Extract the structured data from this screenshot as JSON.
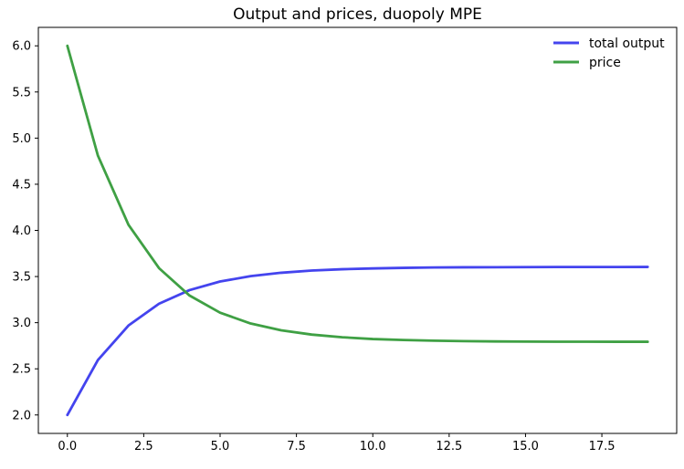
{
  "chart_data": {
    "type": "line",
    "title": "Output and prices, duopoly MPE",
    "xlabel": "",
    "ylabel": "",
    "xlim": [
      -0.95,
      19.95
    ],
    "ylim": [
      1.8,
      6.2
    ],
    "grid": false,
    "legend_position": "upper right",
    "legend_frame": false,
    "background": "#ffffff",
    "axis_color": "#000000",
    "text_color": "#000000",
    "x_ticks": [
      0,
      2.5,
      5,
      7.5,
      10,
      12.5,
      15,
      17.5
    ],
    "x_tick_labels": [
      "0.0",
      "2.5",
      "5.0",
      "7.5",
      "10.0",
      "12.5",
      "15.0",
      "17.5"
    ],
    "y_ticks": [
      2.0,
      2.5,
      3.0,
      3.5,
      4.0,
      4.5,
      5.0,
      5.5,
      6.0
    ],
    "y_tick_labels": [
      "2.0",
      "2.5",
      "3.0",
      "3.5",
      "4.0",
      "4.5",
      "5.0",
      "5.5",
      "6.0"
    ],
    "x": [
      0,
      1,
      2,
      3,
      4,
      5,
      6,
      7,
      8,
      9,
      10,
      11,
      12,
      13,
      14,
      15,
      16,
      17,
      18,
      19
    ],
    "series": [
      {
        "id": "total-output",
        "name": "total output",
        "color": "#4444ee",
        "values": [
          2.0,
          2.595,
          2.969,
          3.205,
          3.353,
          3.446,
          3.504,
          3.541,
          3.565,
          3.579,
          3.588,
          3.594,
          3.598,
          3.6,
          3.601,
          3.602,
          3.603,
          3.603,
          3.603,
          3.604
        ]
      },
      {
        "id": "price",
        "name": "price",
        "color": "#3fa044",
        "values": [
          6.0,
          4.81,
          4.061,
          3.591,
          3.294,
          3.108,
          2.991,
          2.917,
          2.871,
          2.842,
          2.823,
          2.812,
          2.805,
          2.8,
          2.797,
          2.795,
          2.794,
          2.794,
          2.793,
          2.793
        ]
      }
    ]
  }
}
